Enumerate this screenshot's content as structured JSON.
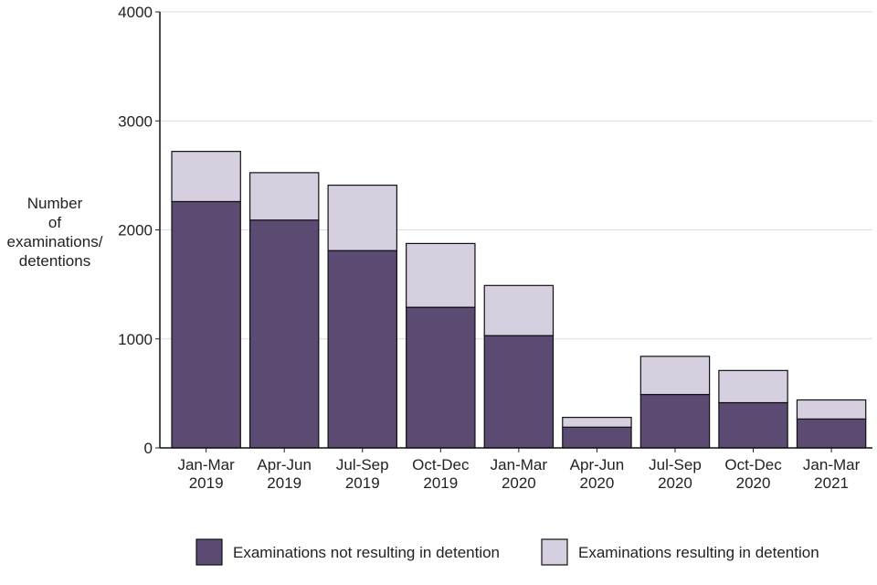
{
  "chart_data": {
    "type": "bar",
    "stacked": true,
    "title": "",
    "xlabel": "",
    "ylabel_lines": [
      "Number",
      "of",
      "examinations/",
      "detentions"
    ],
    "ylim": [
      0,
      4000
    ],
    "yticks": [
      0,
      1000,
      2000,
      3000,
      4000
    ],
    "categories": [
      [
        "Jan-Mar",
        "2019"
      ],
      [
        "Apr-Jun",
        "2019"
      ],
      [
        "Jul-Sep",
        "2019"
      ],
      [
        "Oct-Dec",
        "2019"
      ],
      [
        "Jan-Mar",
        "2020"
      ],
      [
        "Apr-Jun",
        "2020"
      ],
      [
        "Jul-Sep",
        "2020"
      ],
      [
        "Oct-Dec",
        "2020"
      ],
      [
        "Jan-Mar",
        "2021"
      ]
    ],
    "series": [
      {
        "name": "Examinations not resulting in detention",
        "color": "#5b4a72",
        "values": [
          2260,
          2090,
          1810,
          1290,
          1030,
          190,
          490,
          415,
          265
        ]
      },
      {
        "name": "Examinations resulting in detention",
        "color": "#d6cfe0",
        "values": [
          460,
          435,
          600,
          585,
          460,
          90,
          350,
          295,
          175
        ]
      }
    ],
    "grid": true,
    "legend_position": "bottom-right"
  }
}
